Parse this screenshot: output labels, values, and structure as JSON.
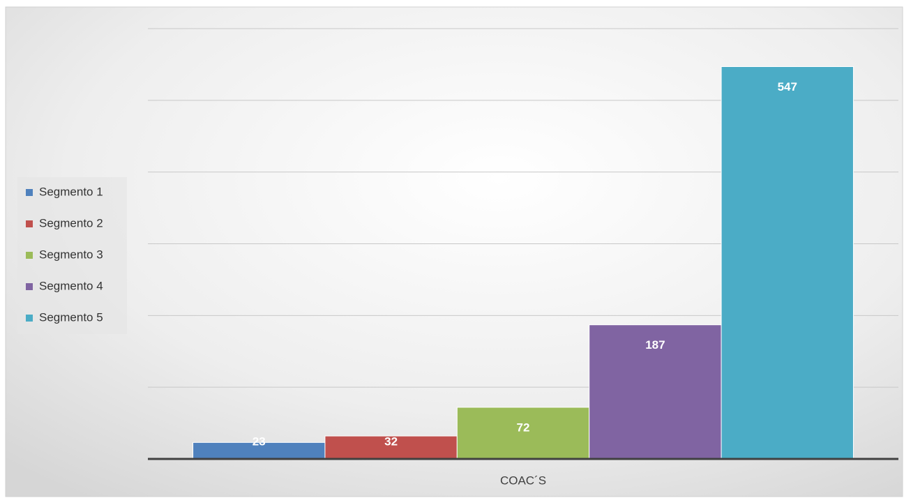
{
  "chart_data": {
    "type": "bar",
    "categories": [
      "COAC´S"
    ],
    "series": [
      {
        "name": "Segmento 1",
        "color": "#4f81bd",
        "values": [
          23
        ]
      },
      {
        "name": "Segmento 2",
        "color": "#c0504d",
        "values": [
          32
        ]
      },
      {
        "name": "Segmento 3",
        "color": "#9bbb59",
        "values": [
          72
        ]
      },
      {
        "name": "Segmento 4",
        "color": "#8064a2",
        "values": [
          187
        ]
      },
      {
        "name": "Segmento 5",
        "color": "#4bacc6",
        "values": [
          547
        ]
      }
    ],
    "ylim": [
      0,
      600
    ],
    "yticks": [
      0,
      100,
      200,
      300,
      400,
      500,
      600
    ],
    "grid": true,
    "legend": "left"
  }
}
